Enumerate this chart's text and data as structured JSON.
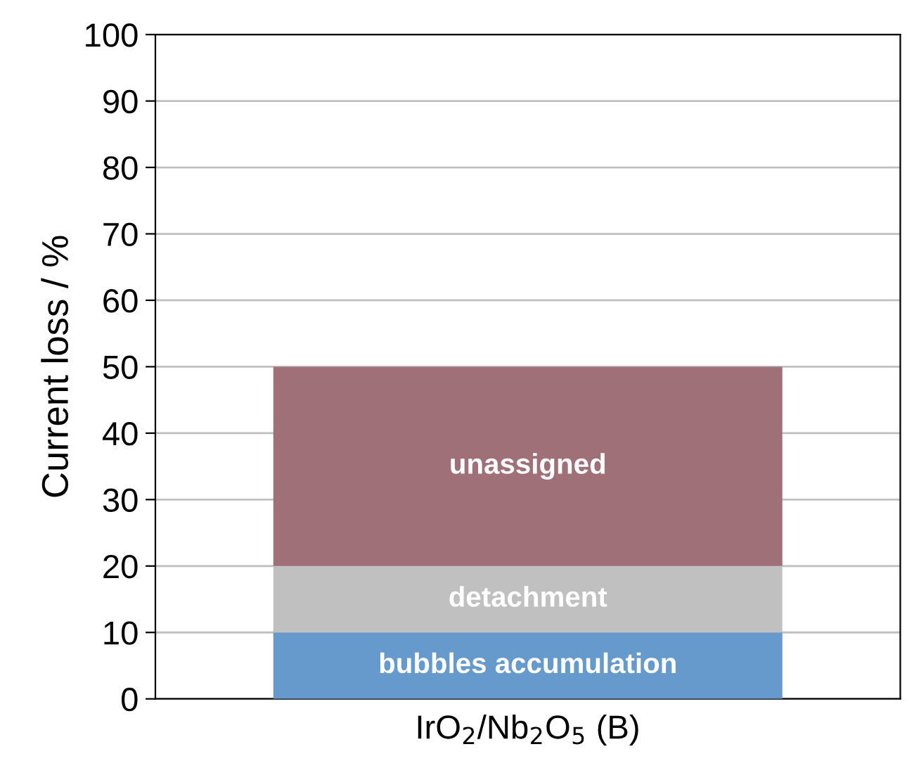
{
  "chart_data": {
    "type": "bar",
    "stacked": true,
    "ylabel": "Current loss / %",
    "categories": [
      "IrO$_{2}$/Nb$_{2}$O$_{5}$ (B)"
    ],
    "series": [
      {
        "name": "bubbles accumulation",
        "color": "#6699cc",
        "values": [
          10
        ]
      },
      {
        "name": "detachment",
        "color": "#c0c0c0",
        "values": [
          10
        ]
      },
      {
        "name": "unassigned",
        "color": "#a07078",
        "values": [
          30
        ]
      }
    ],
    "ylim": [
      0,
      100
    ],
    "yticks": [
      0,
      10,
      20,
      30,
      40,
      50,
      60,
      70,
      80,
      90,
      100
    ],
    "grid": "y",
    "legend": false
  }
}
